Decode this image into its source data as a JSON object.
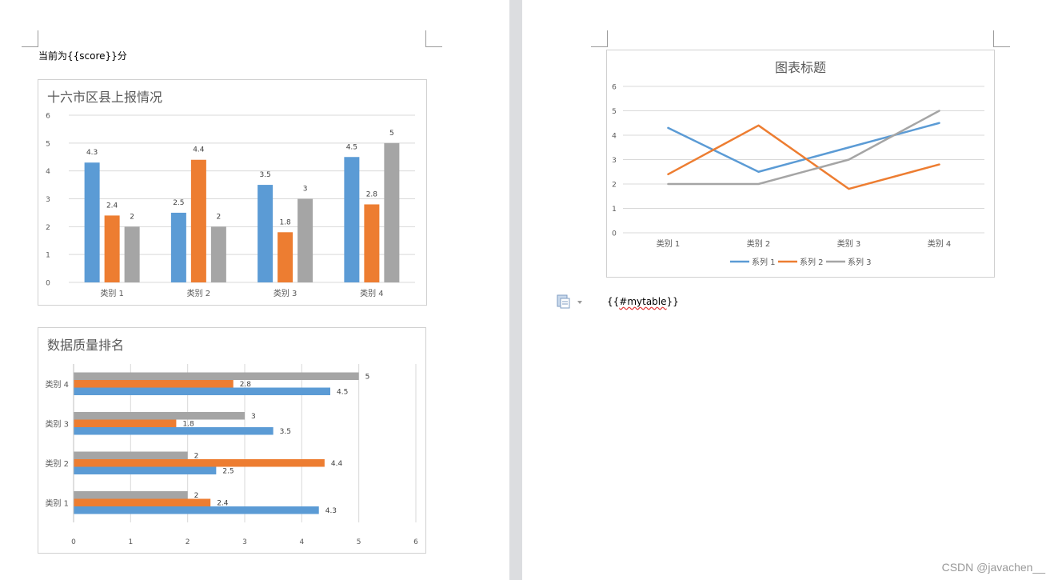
{
  "document": {
    "score_line": "当前为{{score}}分",
    "table_tag_prefix": "{{",
    "table_tag_word": "#mytable",
    "table_tag_suffix": "}}"
  },
  "icons": {
    "paste_options": "paste-options-icon",
    "dropdown": "chevron-down-icon"
  },
  "colors": {
    "series1": "#5b9bd5",
    "series2": "#ed7d31",
    "series3": "#a5a5a5",
    "gridline": "#d9d9d9",
    "axis_text": "#595959",
    "page_gap": "#dcdde0"
  },
  "watermark": "CSDN @javachen__",
  "chart_data": [
    {
      "type": "bar",
      "orientation": "vertical",
      "title": "十六市区县上报情况",
      "categories": [
        "类别 1",
        "类别 2",
        "类别 3",
        "类别 4"
      ],
      "series": [
        {
          "values": [
            4.3,
            2.5,
            3.5,
            4.5
          ]
        },
        {
          "values": [
            2.4,
            4.4,
            1.8,
            2.8
          ]
        },
        {
          "values": [
            2,
            2,
            3,
            5
          ]
        }
      ],
      "ylim": [
        0,
        6
      ],
      "yticks": [
        "0",
        "1",
        "2",
        "3",
        "4",
        "5",
        "6"
      ],
      "grid": true,
      "data_labels": true
    },
    {
      "type": "bar",
      "orientation": "horizontal",
      "title": "数据质量排名",
      "categories": [
        "类别 1",
        "类别 2",
        "类别 3",
        "类别 4"
      ],
      "series": [
        {
          "values": [
            4.3,
            2.5,
            3.5,
            4.5
          ]
        },
        {
          "values": [
            2.4,
            4.4,
            1.8,
            2.8
          ]
        },
        {
          "values": [
            2,
            2,
            3,
            5
          ]
        }
      ],
      "xlim": [
        0,
        6
      ],
      "xticks": [
        "0",
        "1",
        "2",
        "3",
        "4",
        "5",
        "6"
      ],
      "grid": true,
      "data_labels": true
    },
    {
      "type": "line",
      "title": "图表标题",
      "categories": [
        "类别 1",
        "类别 2",
        "类别 3",
        "类别 4"
      ],
      "series": [
        {
          "name": "系列 1",
          "values": [
            4.3,
            2.5,
            3.5,
            4.5
          ]
        },
        {
          "name": "系列 2",
          "values": [
            2.4,
            4.4,
            1.8,
            2.8
          ]
        },
        {
          "name": "系列 3",
          "values": [
            2,
            2,
            3,
            5
          ]
        }
      ],
      "ylim": [
        0,
        6
      ],
      "yticks": [
        "0",
        "1",
        "2",
        "3",
        "4",
        "5",
        "6"
      ],
      "grid": true,
      "legend": "bottom"
    }
  ]
}
